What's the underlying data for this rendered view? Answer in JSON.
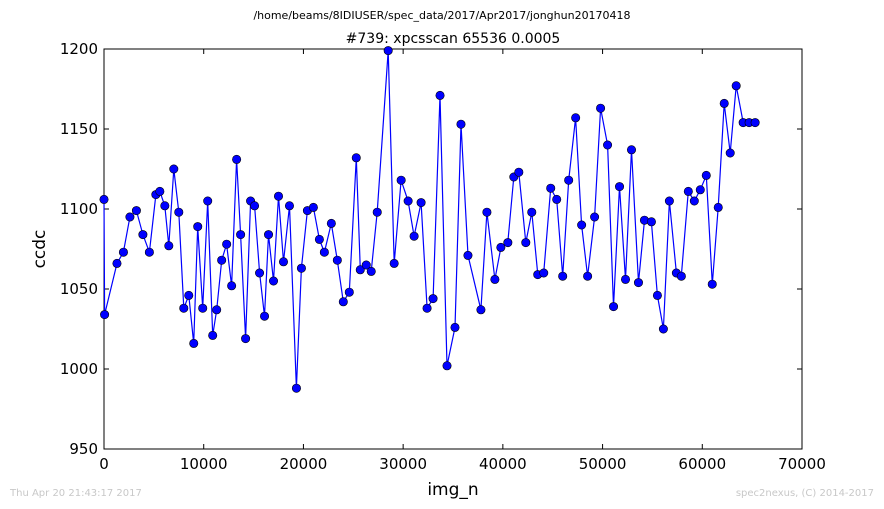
{
  "chart_data": {
    "type": "line",
    "suptitle": "/home/beams/8IDIUSER/spec_data/2017/Apr2017/jonghun20170418",
    "title": "#739: xpcsscan 65536 0.0005",
    "xlabel": "img_n",
    "ylabel": "ccdc",
    "xlim": [
      0,
      70000
    ],
    "ylim": [
      950,
      1200
    ],
    "xticks": [
      "0",
      "10000",
      "20000",
      "30000",
      "40000",
      "50000",
      "60000",
      "70000"
    ],
    "yticks": [
      "950",
      "1000",
      "1050",
      "1100",
      "1150",
      "1200"
    ],
    "grid": false,
    "marker": "circle",
    "color": "#0000ff",
    "series": [
      {
        "x": [
          0,
          59,
          1300,
          1950,
          2600,
          3250,
          3900,
          4550,
          5200,
          5600,
          6100,
          6500,
          7000,
          7500,
          8000,
          8500,
          9000,
          9400,
          9900,
          10400,
          10900,
          11300,
          11800,
          12300,
          12800,
          13300,
          13700,
          14200,
          14700,
          15100,
          15600,
          16100,
          16500,
          17000,
          17500,
          18000,
          18600,
          19300,
          19800,
          20400,
          21000,
          21600,
          22100,
          22800,
          23400,
          24000,
          24600,
          25300,
          25700,
          26300,
          26800,
          27400,
          28500,
          29100,
          29800,
          30500,
          31100,
          31800,
          32400,
          33000,
          33700,
          34400,
          35200,
          35800,
          36500,
          37800,
          38400,
          39200,
          39800,
          40500,
          41100,
          41600,
          42300,
          42900,
          43500,
          44100,
          44800,
          45400,
          46000,
          46600,
          47300,
          47900,
          48500,
          49200,
          49800,
          50500,
          51100,
          51700,
          52300,
          52900,
          53600,
          54200,
          54900,
          55500,
          56100,
          56700,
          57400,
          57900,
          58600,
          59200,
          59800,
          60400,
          61000,
          61600,
          62200,
          62800,
          63400,
          64100,
          64700,
          65300
        ],
        "y": [
          1106,
          1034,
          1066,
          1073,
          1095,
          1099,
          1084,
          1073,
          1109,
          1111,
          1102,
          1077,
          1125,
          1098,
          1038,
          1046,
          1016,
          1089,
          1038,
          1105,
          1021,
          1037,
          1068,
          1078,
          1052,
          1131,
          1084,
          1019,
          1105,
          1102,
          1060,
          1033,
          1084,
          1055,
          1108,
          1067,
          1102,
          988,
          1063,
          1099,
          1101,
          1081,
          1073,
          1091,
          1068,
          1042,
          1048,
          1132,
          1062,
          1065,
          1061,
          1098,
          1199,
          1066,
          1118,
          1105,
          1083,
          1104,
          1038,
          1044,
          1171,
          1002,
          1026,
          1153,
          1071,
          1037,
          1098,
          1056,
          1076,
          1079,
          1120,
          1123,
          1079,
          1098,
          1059,
          1060,
          1113,
          1106,
          1058,
          1118,
          1157,
          1090,
          1058,
          1095,
          1163,
          1140,
          1039,
          1114,
          1056,
          1137,
          1054,
          1093,
          1092,
          1046,
          1025,
          1105,
          1060,
          1058,
          1111,
          1105,
          1112,
          1121,
          1053,
          1101,
          1166,
          1135,
          1177,
          1154,
          1154,
          1154
        ]
      }
    ]
  },
  "footer": {
    "left": "Thu Apr 20 21:43:17 2017",
    "right": "spec2nexus, (C) 2014-2017"
  }
}
